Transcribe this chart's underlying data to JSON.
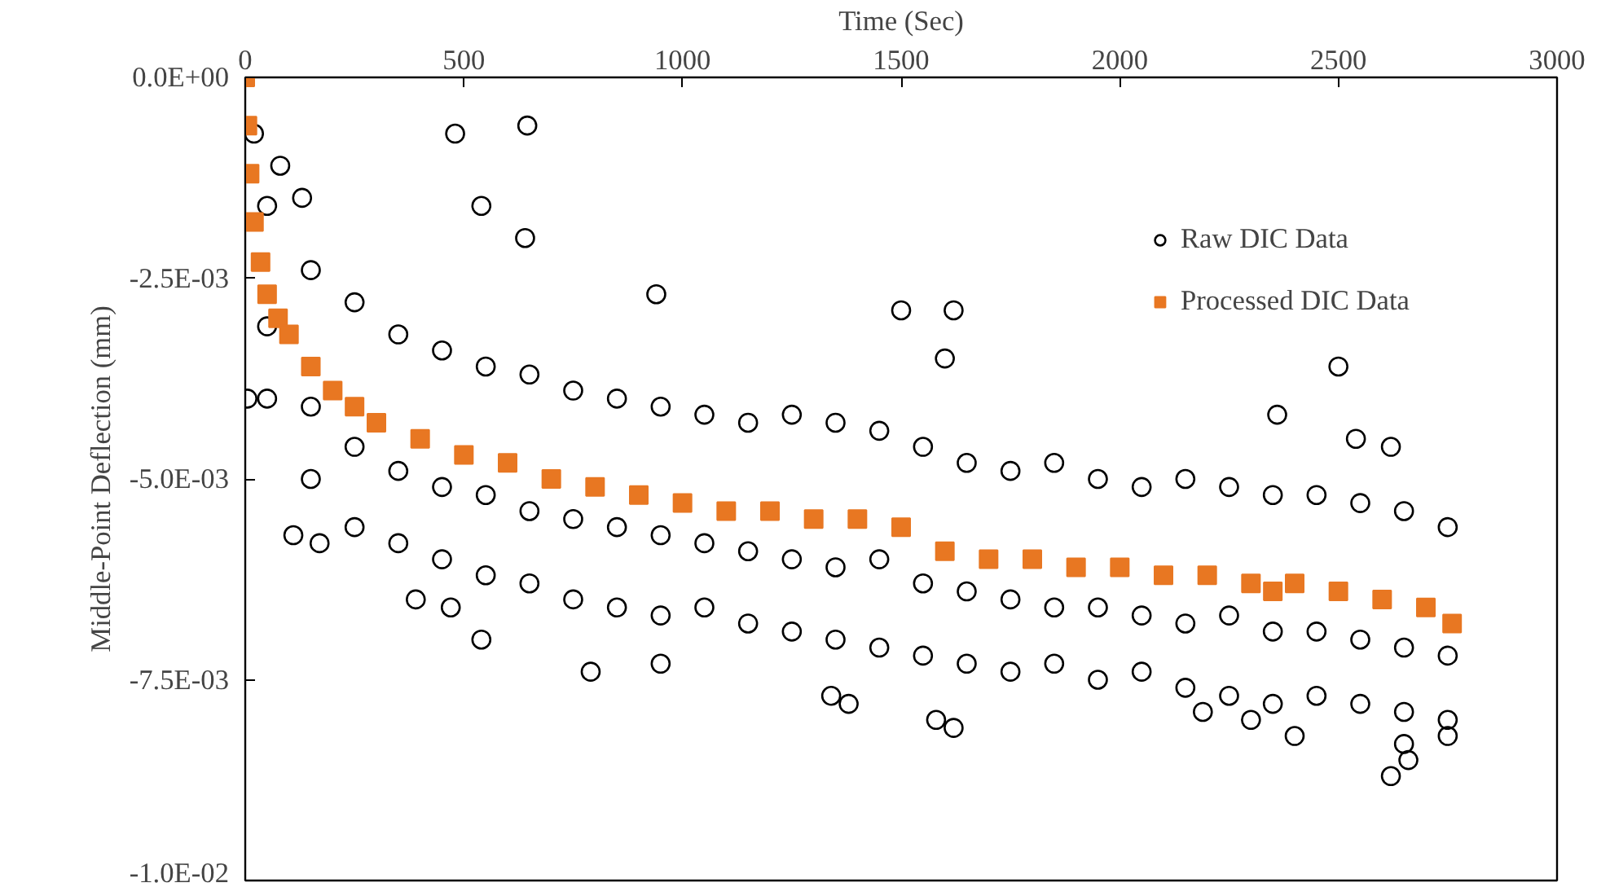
{
  "chart_data": {
    "type": "scatter",
    "xlabel": "Time (Sec)",
    "ylabel": "Middle-Point Deflection (mm)",
    "xlim": [
      0,
      3000
    ],
    "xticks": [
      0,
      500,
      1000,
      1500,
      2000,
      2500,
      3000
    ],
    "ylim": [
      -0.01,
      0
    ],
    "yticks": [
      {
        "value": 0,
        "label": "0.0E+00"
      },
      {
        "value": -0.0025,
        "label": "-2.5E-03"
      },
      {
        "value": -0.005,
        "label": "-5.0E-03"
      },
      {
        "value": -0.0075,
        "label": "-7.5E-03"
      },
      {
        "value": -0.01,
        "label": "-1.0E-02"
      }
    ],
    "grid": false,
    "legend": "top right",
    "series": [
      {
        "name": "Raw DIC Data",
        "color": "#000000",
        "marker": "circle",
        "x": [
          20,
          480,
          645,
          540,
          640,
          80,
          5,
          130,
          940,
          1500,
          1620,
          2500,
          1600,
          2360,
          2540,
          2620,
          1580,
          1620,
          2620,
          2660,
          2650,
          2300,
          1340,
          1380,
          540,
          950,
          790,
          390,
          470,
          110,
          170,
          2750,
          2190,
          2400,
          50,
          50,
          50,
          150,
          150,
          150,
          250,
          250,
          250,
          350,
          350,
          350,
          450,
          450,
          450,
          550,
          550,
          550,
          650,
          650,
          650,
          750,
          750,
          750,
          850,
          850,
          850,
          950,
          950,
          950,
          1050,
          1050,
          1050,
          1150,
          1150,
          1150,
          1250,
          1250,
          1250,
          1350,
          1350,
          1350,
          1450,
          1450,
          1450,
          1550,
          1550,
          1550,
          1650,
          1650,
          1650,
          1750,
          1750,
          1750,
          1850,
          1850,
          1850,
          1950,
          1950,
          1950,
          2050,
          2050,
          2050,
          2150,
          2150,
          2150,
          2250,
          2250,
          2250,
          2350,
          2350,
          2350,
          2450,
          2450,
          2450,
          2550,
          2550,
          2550,
          2650,
          2650,
          2650,
          2750,
          2750,
          2750
        ],
        "values": [
          -0.0007,
          -0.0007,
          -0.0006,
          -0.0016,
          -0.002,
          -0.0011,
          -0.004,
          -0.0015,
          -0.0027,
          -0.0029,
          -0.0029,
          -0.0036,
          -0.0035,
          -0.0042,
          -0.0045,
          -0.0046,
          -0.008,
          -0.0081,
          -0.0087,
          -0.0085,
          -0.0083,
          -0.008,
          -0.0077,
          -0.0078,
          -0.007,
          -0.0073,
          -0.0074,
          -0.0065,
          -0.0066,
          -0.0057,
          -0.0058,
          -0.0082,
          -0.0079,
          -0.0082,
          -0.0016,
          -0.0031,
          -0.004,
          -0.0024,
          -0.0041,
          -0.005,
          -0.0028,
          -0.0046,
          -0.0056,
          -0.0032,
          -0.0049,
          -0.0058,
          -0.0034,
          -0.0051,
          -0.006,
          -0.0036,
          -0.0052,
          -0.0062,
          -0.0037,
          -0.0054,
          -0.0063,
          -0.0039,
          -0.0055,
          -0.0065,
          -0.004,
          -0.0056,
          -0.0066,
          -0.0041,
          -0.0057,
          -0.0067,
          -0.0042,
          -0.0058,
          -0.0066,
          -0.0043,
          -0.0059,
          -0.0068,
          -0.0042,
          -0.006,
          -0.0069,
          -0.0043,
          -0.0061,
          -0.007,
          -0.0044,
          -0.006,
          -0.0071,
          -0.0046,
          -0.0063,
          -0.0072,
          -0.0048,
          -0.0064,
          -0.0073,
          -0.0049,
          -0.0065,
          -0.0074,
          -0.0048,
          -0.0066,
          -0.0073,
          -0.005,
          -0.0066,
          -0.0075,
          -0.0051,
          -0.0067,
          -0.0074,
          -0.005,
          -0.0068,
          -0.0076,
          -0.0051,
          -0.0067,
          -0.0077,
          -0.0052,
          -0.0069,
          -0.0078,
          -0.0052,
          -0.0069,
          -0.0077,
          -0.0053,
          -0.007,
          -0.0078,
          -0.0054,
          -0.0071,
          -0.0079,
          -0.0056,
          -0.0072,
          -0.008
        ]
      },
      {
        "name": "Processed DIC Data",
        "color": "#e87722",
        "marker": "square",
        "x": [
          0,
          5,
          10,
          20,
          35,
          50,
          75,
          100,
          150,
          200,
          250,
          300,
          400,
          500,
          600,
          700,
          800,
          900,
          1000,
          1100,
          1200,
          1300,
          1400,
          1500,
          1600,
          1700,
          1800,
          1900,
          2000,
          2100,
          2200,
          2300,
          2350,
          2400,
          2500,
          2600,
          2700,
          2760
        ],
        "values": [
          0,
          -0.0006,
          -0.0012,
          -0.0018,
          -0.0023,
          -0.0027,
          -0.003,
          -0.0032,
          -0.0036,
          -0.0039,
          -0.0041,
          -0.0043,
          -0.0045,
          -0.0047,
          -0.0048,
          -0.005,
          -0.0051,
          -0.0052,
          -0.0053,
          -0.0054,
          -0.0054,
          -0.0055,
          -0.0055,
          -0.0056,
          -0.0059,
          -0.006,
          -0.006,
          -0.0061,
          -0.0061,
          -0.0062,
          -0.0062,
          -0.0063,
          -0.0064,
          -0.0063,
          -0.0064,
          -0.0065,
          -0.0066,
          -0.0068
        ]
      }
    ]
  }
}
